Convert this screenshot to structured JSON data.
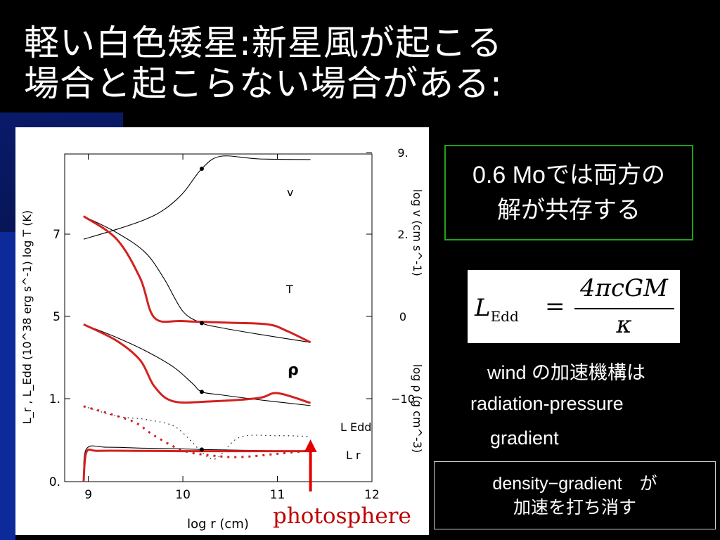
{
  "slide": {
    "title_line1": "軽い白色矮星:新星風が起こる",
    "title_line2": "場合と起こらない場合がある:",
    "box_green_line1": "0.6 Moでは両方の",
    "box_green_line2": "解が共存する",
    "formula": {
      "lhs": "L",
      "lhs_sub": "Edd",
      "equals": "=",
      "numerator": "4πcGM",
      "denominator": "κ"
    },
    "mech_line1": "wind の加速機構は",
    "mech_line2": "radiation-pressure",
    "mech_line3": "gradient",
    "box2_line1": "density−gradient　が",
    "box2_line2": "加速を打ち消す",
    "photosphere_label": "photosphere",
    "colors": {
      "accent_blue": "#0c2a9a",
      "green_border": "#1fa21f",
      "red_curve": "#d42020",
      "arrow_red": "#e00000"
    }
  },
  "chart_data": {
    "type": "line",
    "xlabel": "log r (cm)",
    "xlim": [
      8.75,
      12
    ],
    "x_ticks": [
      "9",
      "10",
      "11",
      "12"
    ],
    "left_axis_label": "L_r , L_Edd (10^38 erg s^-1)   log T (K)",
    "left_ticks": [
      "0.",
      "1.",
      "5",
      "7"
    ],
    "right_axis_label_top": "log v (cm s^-1)",
    "right_axis_label_bottom": "log ρ (g cm^-3)",
    "right_ticks": [
      "9.",
      "2.",
      "0",
      "−10"
    ],
    "curve_labels": [
      "v",
      "T",
      "ρ",
      "L_Edd",
      "L_r"
    ],
    "series": [
      {
        "name": "v",
        "color": "black",
        "x": [
          8.95,
          9.3,
          9.6,
          9.8,
          10.0,
          10.2,
          10.4,
          10.8,
          11.35
        ],
        "y": [
          0.74,
          0.77,
          0.8,
          0.83,
          0.88,
          0.955,
          0.993,
          0.985,
          0.983
        ]
      },
      {
        "name": "T",
        "color": "black",
        "x": [
          8.95,
          9.3,
          9.6,
          9.8,
          10.0,
          10.2,
          10.4,
          10.8,
          11.35
        ],
        "y": [
          0.81,
          0.76,
          0.7,
          0.62,
          0.52,
          0.484,
          0.47,
          0.45,
          0.425
        ]
      },
      {
        "name": "T",
        "color": "red",
        "x": [
          8.95,
          9.3,
          9.55,
          9.7,
          10.0,
          10.5,
          10.9,
          11.1,
          11.35
        ],
        "y": [
          0.81,
          0.74,
          0.62,
          0.5,
          0.49,
          0.485,
          0.48,
          0.46,
          0.425
        ]
      },
      {
        "name": "ρ",
        "color": "black",
        "x": [
          8.95,
          9.3,
          9.6,
          9.9,
          10.1,
          10.2,
          10.4,
          10.8,
          11.35
        ],
        "y": [
          0.48,
          0.44,
          0.4,
          0.35,
          0.3,
          0.274,
          0.265,
          0.25,
          0.232
        ]
      },
      {
        "name": "ρ",
        "color": "red",
        "x": [
          8.95,
          9.3,
          9.55,
          9.7,
          9.9,
          10.3,
          10.8,
          11.0,
          11.35
        ],
        "y": [
          0.48,
          0.43,
          0.37,
          0.29,
          0.245,
          0.245,
          0.255,
          0.27,
          0.24
        ]
      },
      {
        "name": "L_Edd",
        "color": "black",
        "style": "dotted",
        "x": [
          8.95,
          9.3,
          9.6,
          9.9,
          10.1,
          10.2,
          10.35,
          10.6,
          11.0,
          11.35
        ],
        "y": [
          0.23,
          0.2,
          0.19,
          0.17,
          0.12,
          0.09,
          0.07,
          0.135,
          0.14,
          0.138
        ]
      },
      {
        "name": "L_Edd",
        "color": "red",
        "style": "dotted",
        "x": [
          8.95,
          9.25,
          9.5,
          9.7,
          10.0,
          10.3,
          10.6,
          11.0,
          11.35
        ],
        "y": [
          0.23,
          0.205,
          0.18,
          0.14,
          0.095,
          0.08,
          0.075,
          0.085,
          0.095
        ]
      },
      {
        "name": "L_r",
        "color": "black",
        "x": [
          8.95,
          8.98,
          9.2,
          9.6,
          10.0,
          10.2,
          10.6,
          11.0,
          11.35
        ],
        "y": [
          0.0,
          0.1,
          0.105,
          0.102,
          0.1,
          0.098,
          0.096,
          0.094,
          0.094
        ]
      },
      {
        "name": "L_r",
        "color": "red",
        "x": [
          8.95,
          8.98,
          9.1,
          9.5,
          10.0,
          10.4,
          10.8,
          11.35
        ],
        "y": [
          0.0,
          0.09,
          0.094,
          0.094,
          0.093,
          0.093,
          0.093,
          0.093
        ]
      }
    ],
    "markers": [
      {
        "x": 10.2,
        "y": 0.955
      },
      {
        "x": 10.2,
        "y": 0.484
      },
      {
        "x": 10.2,
        "y": 0.274
      },
      {
        "x": 10.2,
        "y": 0.098
      }
    ],
    "photosphere_x": 11.35
  }
}
